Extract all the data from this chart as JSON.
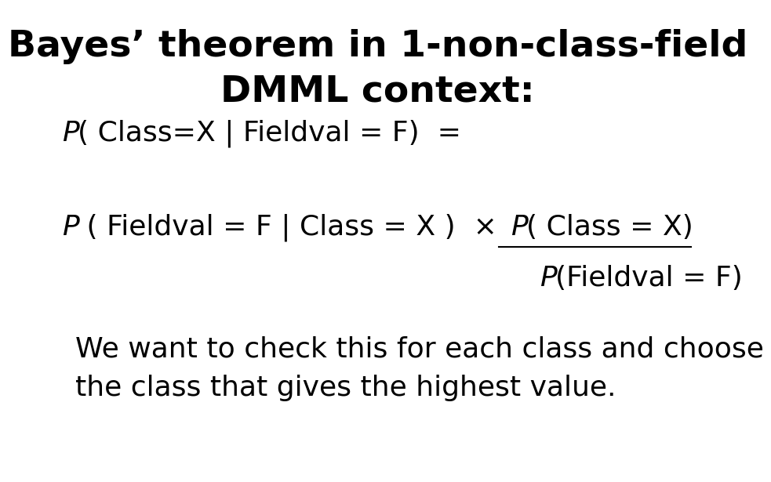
{
  "title_line1": "Bayes’ theorem in 1-non-class-field",
  "title_line2": "DMML context:",
  "footer_line1": "We want to check this for each class and choose",
  "footer_line2": "the class that gives the highest value.",
  "bg_color": "#ffffff",
  "text_color": "#000000",
  "title_fontsize": 34,
  "body_fontsize": 26,
  "footer_fontsize": 26,
  "times_char": "×"
}
